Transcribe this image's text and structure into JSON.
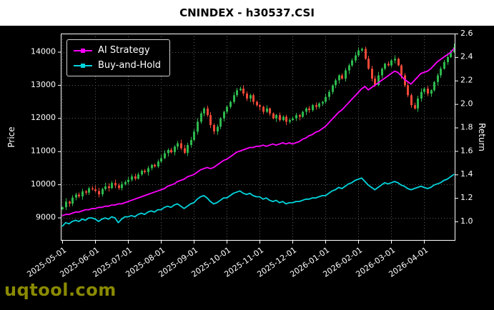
{
  "watermark": {
    "text": "uqtool.com",
    "color": "#8a8a00"
  },
  "chart_data": {
    "type": "candlestick+line",
    "title": "CNINDEX - h30537.CSI",
    "xlabel": "",
    "ylabel_left": "Price",
    "ylabel_right": "Return",
    "background": "#000000",
    "grid": true,
    "legend_position": "upper-left",
    "x_tick_labels": [
      "2025-05-01",
      "2025-06-01",
      "2025-07-01",
      "2025-08-01",
      "2025-09-01",
      "2025-10-01",
      "2025-11-01",
      "2025-12-01",
      "2026-01-01",
      "2026-02-01",
      "2026-03-01",
      "2026-04-01"
    ],
    "x_tick_indices": [
      0,
      10,
      20,
      30,
      40,
      50,
      60,
      70,
      80,
      90,
      100,
      110
    ],
    "price_axis": {
      "ticks": [
        9000,
        10000,
        11000,
        12000,
        13000,
        14000
      ],
      "range": [
        8300,
        14550
      ]
    },
    "return_axis": {
      "ticks": [
        1.0,
        1.2,
        1.4,
        1.6,
        1.8,
        2.0,
        2.2,
        2.4,
        2.6
      ],
      "range": [
        0.836,
        2.6
      ]
    },
    "candles": {
      "first_open": 9250,
      "up_color": "#2db84d",
      "down_color": "#ef4837",
      "closes": [
        9310,
        9480,
        9420,
        9600,
        9690,
        9640,
        9790,
        9750,
        9880,
        9850,
        9800,
        9700,
        9860,
        9940,
        9890,
        10040,
        9970,
        9890,
        10010,
        10070,
        10140,
        10240,
        10170,
        10300,
        10410,
        10370,
        10490,
        10590,
        10540,
        10690,
        10790,
        10940,
        11040,
        10970,
        11140,
        11240,
        11090,
        10950,
        11190,
        11340,
        11590,
        11890,
        12140,
        12290,
        12090,
        11790,
        11600,
        11740,
        11990,
        12190,
        12340,
        12490,
        12690,
        12840,
        12890,
        12740,
        12590,
        12690,
        12490,
        12390,
        12340,
        12190,
        12290,
        12140,
        11990,
        12090,
        11940,
        12040,
        11890,
        11940,
        11990,
        12090,
        12040,
        12190,
        12290,
        12240,
        12390,
        12340,
        12440,
        12490,
        12640,
        12790,
        12990,
        13140,
        13290,
        13190,
        13440,
        13590,
        13740,
        13890,
        14040,
        14090,
        13790,
        13490,
        13190,
        12990,
        13290,
        13490,
        13640,
        13590,
        13740,
        13790,
        13590,
        13290,
        12990,
        12690,
        12390,
        12290,
        12590,
        12790,
        12890,
        12740,
        12840,
        13090,
        13290,
        13490,
        13690,
        13840,
        13990,
        14140
      ]
    },
    "series": [
      {
        "name": "AI Strategy",
        "axis": "return",
        "color": "#ff00ff",
        "values": [
          1.05,
          1.06,
          1.06,
          1.07,
          1.08,
          1.08,
          1.09,
          1.1,
          1.1,
          1.11,
          1.11,
          1.12,
          1.12,
          1.13,
          1.13,
          1.14,
          1.14,
          1.15,
          1.15,
          1.16,
          1.17,
          1.18,
          1.19,
          1.2,
          1.21,
          1.22,
          1.23,
          1.24,
          1.25,
          1.26,
          1.27,
          1.28,
          1.3,
          1.31,
          1.32,
          1.34,
          1.35,
          1.36,
          1.38,
          1.39,
          1.4,
          1.42,
          1.44,
          1.45,
          1.46,
          1.45,
          1.46,
          1.48,
          1.5,
          1.52,
          1.53,
          1.55,
          1.57,
          1.59,
          1.6,
          1.61,
          1.62,
          1.63,
          1.63,
          1.64,
          1.64,
          1.65,
          1.64,
          1.65,
          1.66,
          1.65,
          1.66,
          1.67,
          1.66,
          1.67,
          1.66,
          1.67,
          1.68,
          1.7,
          1.71,
          1.73,
          1.74,
          1.76,
          1.77,
          1.79,
          1.81,
          1.84,
          1.87,
          1.9,
          1.93,
          1.95,
          1.98,
          2.01,
          2.04,
          2.07,
          2.1,
          2.13,
          2.15,
          2.12,
          2.14,
          2.16,
          2.18,
          2.2,
          2.22,
          2.24,
          2.26,
          2.28,
          2.27,
          2.24,
          2.21,
          2.19,
          2.17,
          2.2,
          2.23,
          2.26,
          2.27,
          2.28,
          2.3,
          2.33,
          2.36,
          2.38,
          2.4,
          2.42,
          2.44,
          2.47
        ]
      },
      {
        "name": "Buy-and-Hold",
        "axis": "return",
        "color": "#00d5dd",
        "values": [
          0.96,
          0.99,
          0.98,
          1.0,
          1.01,
          1.0,
          1.02,
          1.01,
          1.03,
          1.03,
          1.02,
          1.0,
          1.02,
          1.03,
          1.02,
          1.04,
          1.03,
          0.99,
          1.02,
          1.04,
          1.04,
          1.05,
          1.04,
          1.06,
          1.07,
          1.06,
          1.08,
          1.09,
          1.08,
          1.1,
          1.1,
          1.12,
          1.13,
          1.12,
          1.14,
          1.15,
          1.13,
          1.11,
          1.13,
          1.15,
          1.16,
          1.19,
          1.21,
          1.22,
          1.2,
          1.17,
          1.15,
          1.16,
          1.18,
          1.2,
          1.2,
          1.22,
          1.24,
          1.25,
          1.26,
          1.24,
          1.23,
          1.24,
          1.22,
          1.21,
          1.21,
          1.19,
          1.2,
          1.18,
          1.17,
          1.18,
          1.16,
          1.17,
          1.15,
          1.16,
          1.16,
          1.17,
          1.17,
          1.18,
          1.19,
          1.19,
          1.2,
          1.2,
          1.21,
          1.22,
          1.22,
          1.24,
          1.26,
          1.27,
          1.29,
          1.28,
          1.3,
          1.32,
          1.33,
          1.35,
          1.36,
          1.37,
          1.34,
          1.31,
          1.29,
          1.27,
          1.29,
          1.31,
          1.33,
          1.32,
          1.33,
          1.34,
          1.33,
          1.31,
          1.3,
          1.28,
          1.27,
          1.28,
          1.29,
          1.3,
          1.29,
          1.28,
          1.29,
          1.31,
          1.32,
          1.33,
          1.35,
          1.36,
          1.38,
          1.4
        ]
      }
    ]
  }
}
